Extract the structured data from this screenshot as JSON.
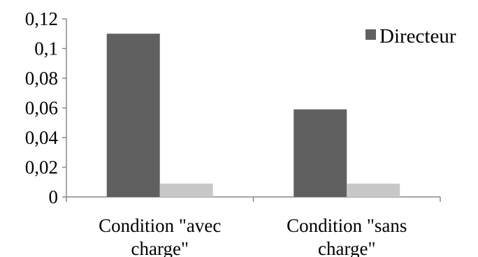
{
  "chart_data": {
    "type": "bar",
    "categories": [
      [
        "Condition \"avec",
        "charge\""
      ],
      [
        "Condition \"sans",
        "charge\""
      ]
    ],
    "series": [
      {
        "name": "Directeur",
        "values": [
          0.11,
          0.059
        ],
        "color": "#606060"
      },
      {
        "values": [
          0.009,
          0.009
        ],
        "color": "#c8c8c8"
      }
    ],
    "yticks": [
      "0",
      "0,02",
      "0,04",
      "0,06",
      "0,08",
      "0,1",
      "0,12"
    ],
    "ylim": [
      0,
      0.12
    ],
    "grid": false,
    "legend_position": "top-right",
    "title": "",
    "xlabel": "",
    "ylabel": ""
  }
}
